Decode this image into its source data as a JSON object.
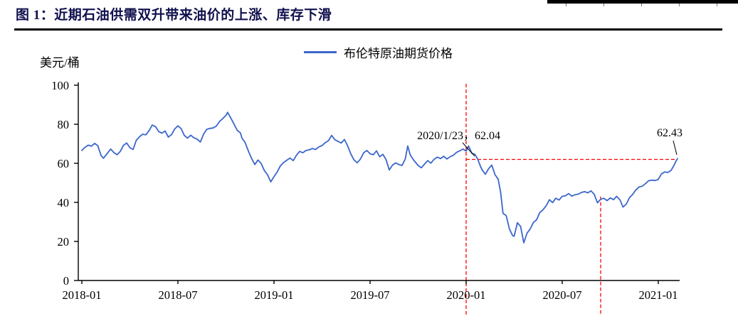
{
  "page": {
    "title": "图 1：近期石油供需双升带来油价的上涨、库存下滑"
  },
  "chart_data": {
    "type": "line",
    "title": "图 1：近期石油供需双升带来油价的上涨、库存下滑",
    "xlabel": "",
    "ylabel": "美元/桶",
    "legend_label": "布伦特原油期货价格",
    "legend_position": "top-center",
    "grid": false,
    "ylim": [
      0,
      100
    ],
    "y_ticks": [
      0,
      20,
      40,
      60,
      80,
      100
    ],
    "x_ticks": [
      {
        "month": 0,
        "label": "2018-01"
      },
      {
        "month": 6,
        "label": "2018-07"
      },
      {
        "month": 12,
        "label": "2019-01"
      },
      {
        "month": 18,
        "label": "2019-07"
      },
      {
        "month": 24,
        "label": "2020-01"
      },
      {
        "month": 30,
        "label": "2020-07"
      },
      {
        "month": 36,
        "label": "2021-01"
      }
    ],
    "annotations": [
      {
        "text": "2020/1/23，62.04",
        "month": 24.73,
        "value": 62.04
      },
      {
        "text": "62.43",
        "month": 37.2,
        "value": 62.43
      }
    ],
    "ref_lines": [
      {
        "orient": "v",
        "month": 24.0,
        "color": "#FF0000",
        "style": "dashed"
      },
      {
        "orient": "v",
        "month": 32.4,
        "from_value": 43,
        "color": "#FF0000",
        "style": "dashed"
      },
      {
        "orient": "h",
        "value": 62.0,
        "from_month": 24.0,
        "to_month": 37.2,
        "color": "#FF0000",
        "style": "dashed"
      }
    ],
    "series": [
      {
        "name": "布伦特原油期货价格",
        "color": "#3B66CC",
        "x_unit": "months since 2018-01",
        "y_unit": "USD/barrel",
        "points": [
          [
            0,
            66.6
          ],
          [
            0.2,
            68.2
          ],
          [
            0.4,
            69.3
          ],
          [
            0.6,
            68.8
          ],
          [
            0.8,
            70.2
          ],
          [
            1,
            69
          ],
          [
            1.2,
            64
          ],
          [
            1.35,
            62.6
          ],
          [
            1.6,
            65.2
          ],
          [
            1.8,
            67.3
          ],
          [
            2,
            65.5
          ],
          [
            2.2,
            64.4
          ],
          [
            2.4,
            66.1
          ],
          [
            2.6,
            69.2
          ],
          [
            2.8,
            70.4
          ],
          [
            3,
            68
          ],
          [
            3.2,
            67.1
          ],
          [
            3.4,
            71.8
          ],
          [
            3.6,
            73.6
          ],
          [
            3.8,
            74.9
          ],
          [
            4,
            74.6
          ],
          [
            4.2,
            76.8
          ],
          [
            4.4,
            79.6
          ],
          [
            4.6,
            78.8
          ],
          [
            4.8,
            76.3
          ],
          [
            5,
            75.4
          ],
          [
            5.2,
            76.6
          ],
          [
            5.4,
            73.4
          ],
          [
            5.6,
            74.7
          ],
          [
            5.8,
            77.6
          ],
          [
            6,
            79.2
          ],
          [
            6.2,
            77.8
          ],
          [
            6.4,
            74.3
          ],
          [
            6.6,
            72.9
          ],
          [
            6.8,
            74.4
          ],
          [
            7,
            73.1
          ],
          [
            7.2,
            72.4
          ],
          [
            7.4,
            70.9
          ],
          [
            7.6,
            74.9
          ],
          [
            7.8,
            77.4
          ],
          [
            8,
            77.9
          ],
          [
            8.2,
            78.1
          ],
          [
            8.4,
            79.1
          ],
          [
            8.6,
            81.4
          ],
          [
            8.8,
            82.9
          ],
          [
            9,
            84.6
          ],
          [
            9.1,
            86.1
          ],
          [
            9.3,
            83.2
          ],
          [
            9.5,
            80.1
          ],
          [
            9.7,
            76.9
          ],
          [
            9.9,
            75.6
          ],
          [
            10,
            72.9
          ],
          [
            10.2,
            70.6
          ],
          [
            10.4,
            66.3
          ],
          [
            10.6,
            62.5
          ],
          [
            10.8,
            59.4
          ],
          [
            11,
            61.7
          ],
          [
            11.2,
            59.9
          ],
          [
            11.4,
            56.3
          ],
          [
            11.6,
            54.1
          ],
          [
            11.8,
            50.5
          ],
          [
            12,
            53.2
          ],
          [
            12.2,
            55.6
          ],
          [
            12.4,
            58.7
          ],
          [
            12.6,
            60.4
          ],
          [
            12.8,
            61.6
          ],
          [
            13,
            62.7
          ],
          [
            13.2,
            61.4
          ],
          [
            13.4,
            64.1
          ],
          [
            13.6,
            66.1
          ],
          [
            13.8,
            65.4
          ],
          [
            14,
            66.6
          ],
          [
            14.2,
            66.9
          ],
          [
            14.4,
            67.6
          ],
          [
            14.6,
            67.1
          ],
          [
            14.8,
            68.4
          ],
          [
            15,
            69.1
          ],
          [
            15.2,
            70.6
          ],
          [
            15.4,
            71.6
          ],
          [
            15.6,
            74.3
          ],
          [
            15.8,
            72.1
          ],
          [
            16,
            71.2
          ],
          [
            16.2,
            70.4
          ],
          [
            16.4,
            72.2
          ],
          [
            16.6,
            68.9
          ],
          [
            16.8,
            64.8
          ],
          [
            17,
            61.7
          ],
          [
            17.2,
            60.3
          ],
          [
            17.4,
            62.2
          ],
          [
            17.6,
            65.4
          ],
          [
            17.8,
            66.6
          ],
          [
            18,
            64.9
          ],
          [
            18.2,
            64.4
          ],
          [
            18.4,
            66.4
          ],
          [
            18.6,
            63.4
          ],
          [
            18.8,
            64.6
          ],
          [
            19,
            61.9
          ],
          [
            19.2,
            56.6
          ],
          [
            19.4,
            59.1
          ],
          [
            19.6,
            60.2
          ],
          [
            19.8,
            59.4
          ],
          [
            20,
            58.9
          ],
          [
            20.2,
            62.3
          ],
          [
            20.35,
            68.9
          ],
          [
            20.5,
            64.4
          ],
          [
            20.7,
            61.9
          ],
          [
            21,
            58.9
          ],
          [
            21.2,
            57.7
          ],
          [
            21.4,
            59.6
          ],
          [
            21.6,
            61.4
          ],
          [
            21.8,
            60.1
          ],
          [
            22,
            62.1
          ],
          [
            22.2,
            63.2
          ],
          [
            22.4,
            62.4
          ],
          [
            22.6,
            63.6
          ],
          [
            22.8,
            62.2
          ],
          [
            23,
            63.4
          ],
          [
            23.2,
            64.1
          ],
          [
            23.4,
            65.6
          ],
          [
            23.6,
            66.4
          ],
          [
            23.8,
            67.3
          ],
          [
            24,
            66.3
          ],
          [
            24.15,
            68.9
          ],
          [
            24.35,
            65.2
          ],
          [
            24.55,
            64.6
          ],
          [
            24.73,
            62.04
          ],
          [
            24.9,
            58.3
          ],
          [
            25,
            56.6
          ],
          [
            25.2,
            54.4
          ],
          [
            25.4,
            57.2
          ],
          [
            25.6,
            59.1
          ],
          [
            25.8,
            54.2
          ],
          [
            26,
            51.9
          ],
          [
            26.15,
            45.3
          ],
          [
            26.3,
            34.4
          ],
          [
            26.5,
            33.2
          ],
          [
            26.7,
            26.4
          ],
          [
            26.9,
            23
          ],
          [
            27,
            22.7
          ],
          [
            27.2,
            29.6
          ],
          [
            27.4,
            27.7
          ],
          [
            27.6,
            19.3
          ],
          [
            27.8,
            24.2
          ],
          [
            28,
            26.4
          ],
          [
            28.2,
            29.7
          ],
          [
            28.4,
            31.1
          ],
          [
            28.6,
            34.8
          ],
          [
            28.8,
            36.2
          ],
          [
            29,
            38.3
          ],
          [
            29.2,
            41.4
          ],
          [
            29.4,
            39.9
          ],
          [
            29.6,
            42.1
          ],
          [
            29.8,
            41.2
          ],
          [
            30,
            43.1
          ],
          [
            30.2,
            43.4
          ],
          [
            30.4,
            44.5
          ],
          [
            30.6,
            43.2
          ],
          [
            30.8,
            43.9
          ],
          [
            31,
            44.2
          ],
          [
            31.2,
            45.1
          ],
          [
            31.4,
            45.5
          ],
          [
            31.6,
            44.9
          ],
          [
            31.8,
            45.9
          ],
          [
            32,
            44.1
          ],
          [
            32.2,
            39.8
          ],
          [
            32.4,
            41.6
          ],
          [
            32.6,
            42.1
          ],
          [
            32.8,
            40.9
          ],
          [
            33,
            42.3
          ],
          [
            33.2,
            41.4
          ],
          [
            33.4,
            43.1
          ],
          [
            33.6,
            41.4
          ],
          [
            33.8,
            37.6
          ],
          [
            34,
            39.1
          ],
          [
            34.2,
            42.4
          ],
          [
            34.4,
            44.1
          ],
          [
            34.6,
            46.4
          ],
          [
            34.8,
            47.9
          ],
          [
            35,
            48.3
          ],
          [
            35.2,
            49.6
          ],
          [
            35.4,
            51.1
          ],
          [
            35.6,
            51.4
          ],
          [
            35.8,
            51.2
          ],
          [
            36,
            51.8
          ],
          [
            36.2,
            54.6
          ],
          [
            36.4,
            55.6
          ],
          [
            36.6,
            55.3
          ],
          [
            36.8,
            56.4
          ],
          [
            37,
            59.3
          ],
          [
            37.1,
            61.1
          ],
          [
            37.2,
            62.43
          ]
        ]
      }
    ]
  }
}
